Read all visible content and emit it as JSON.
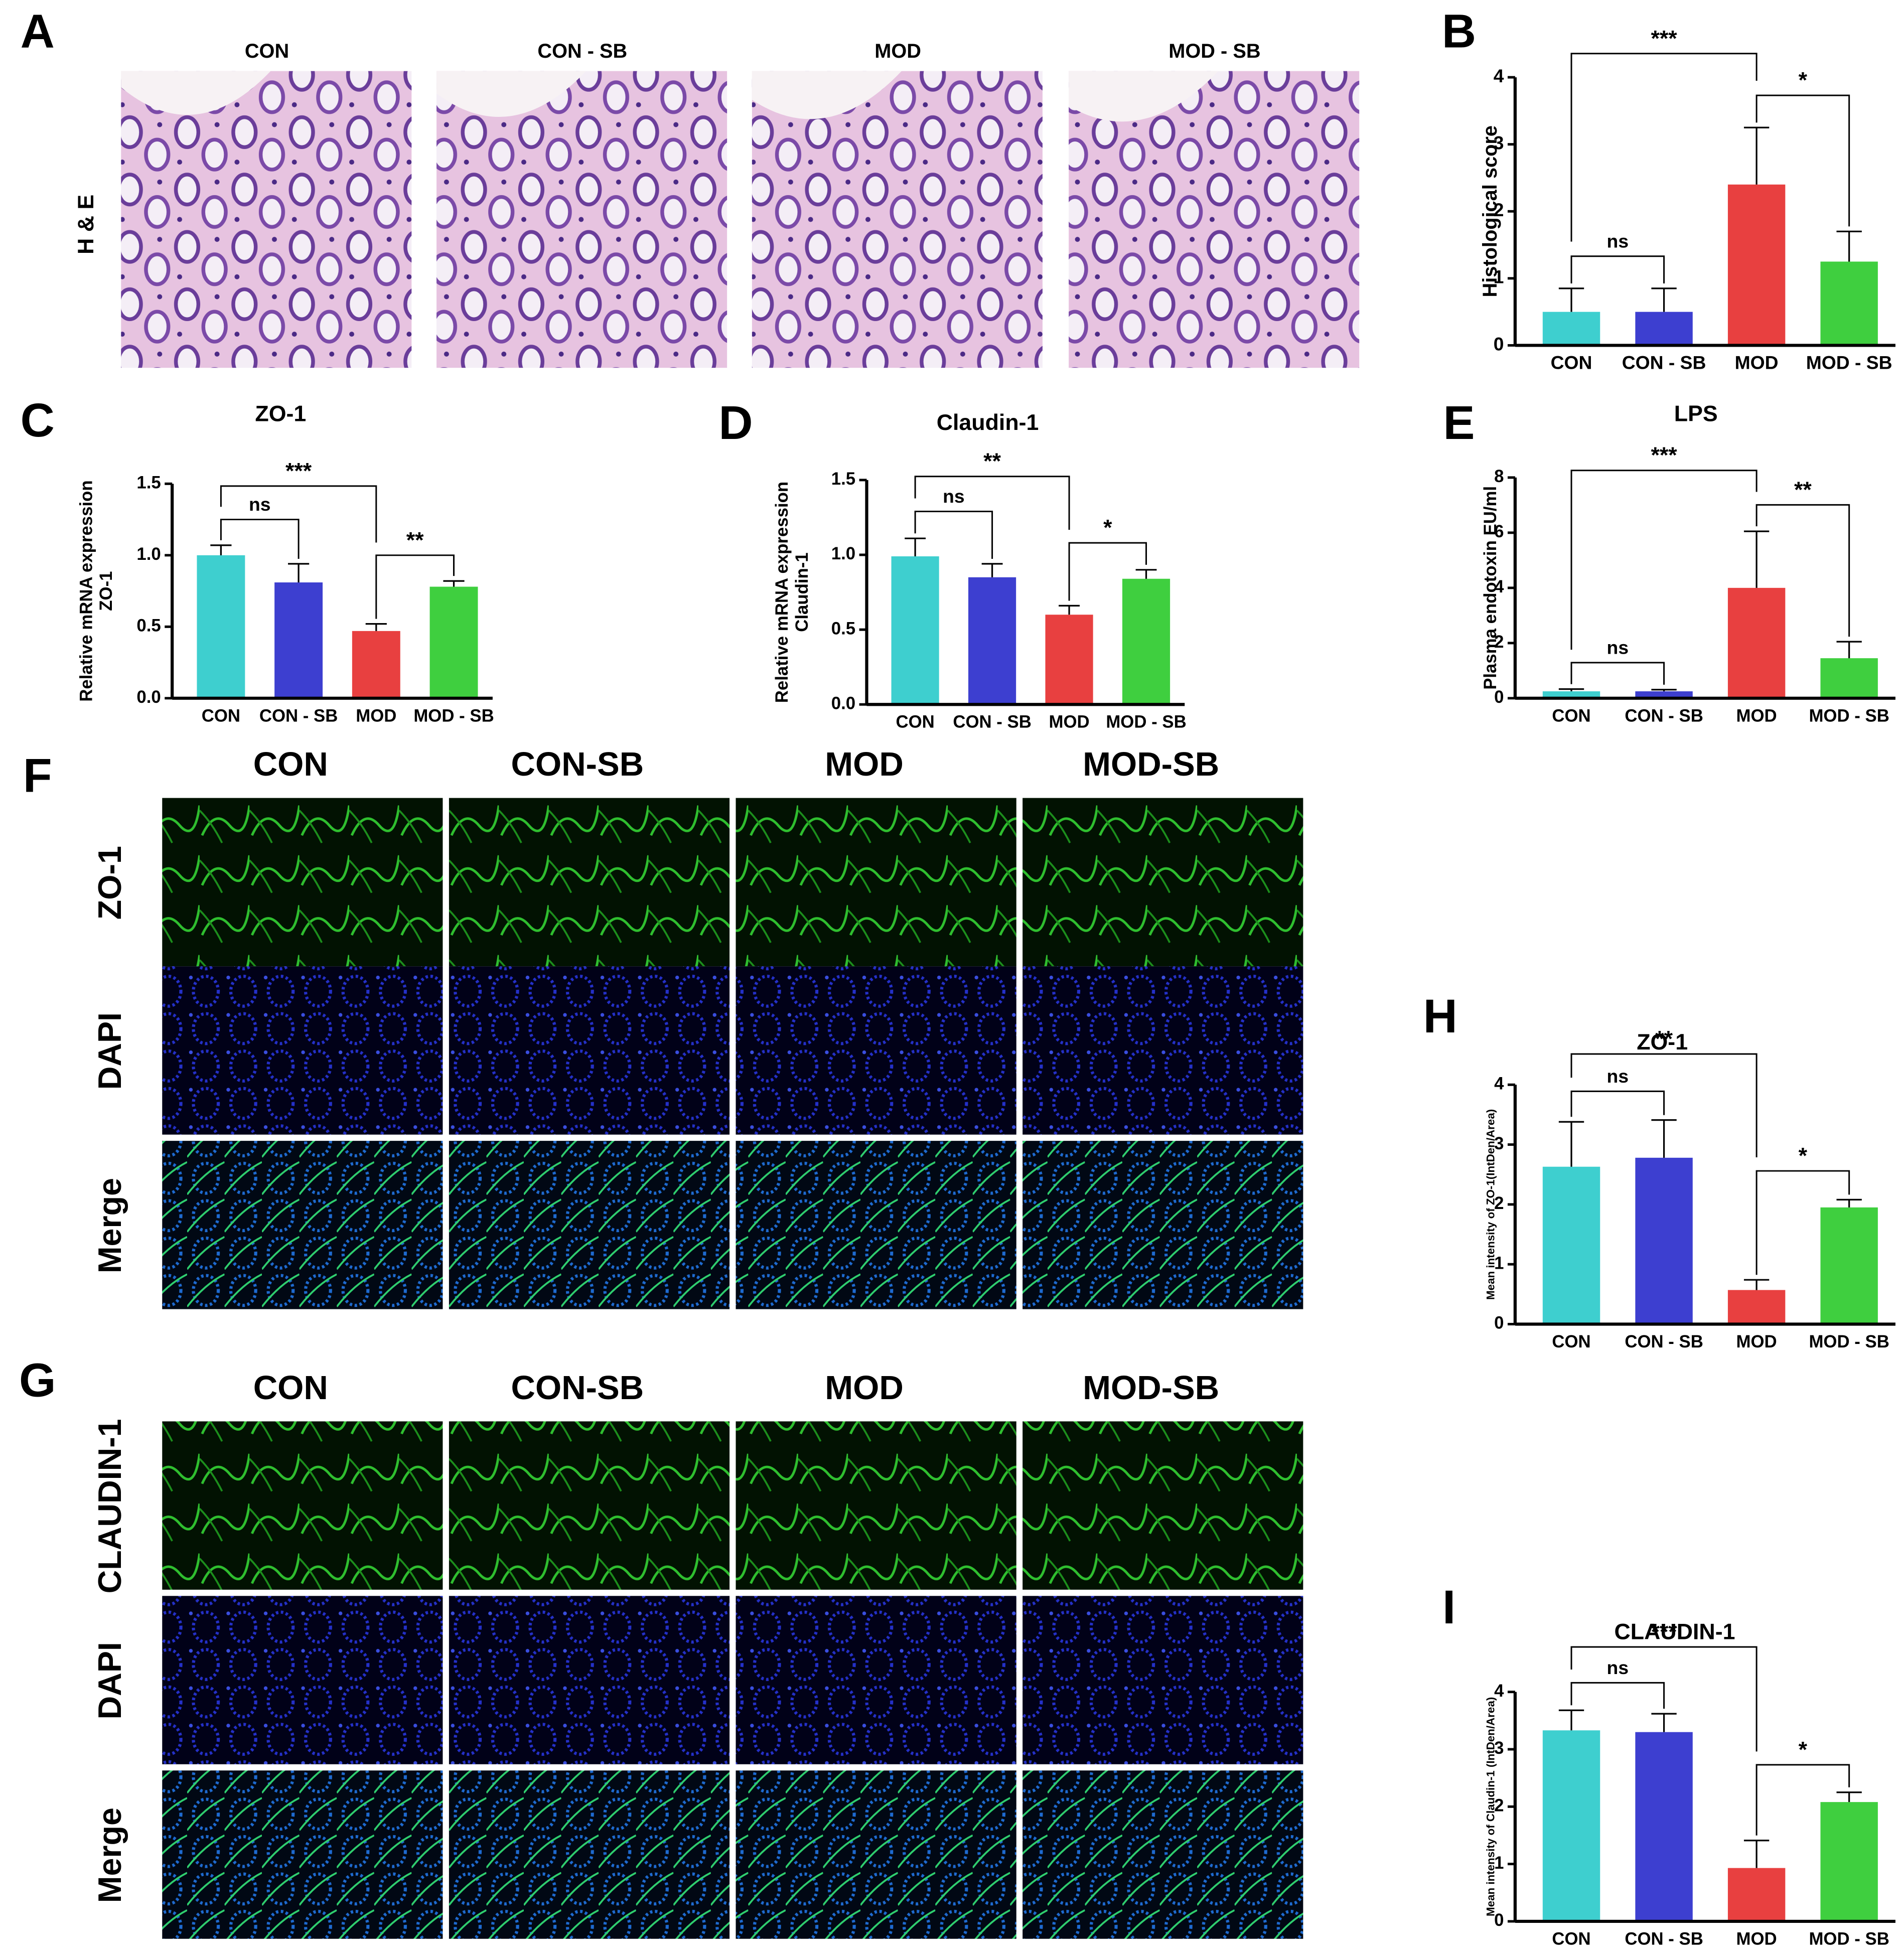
{
  "panel_labels": [
    "A",
    "B",
    "C",
    "D",
    "E",
    "F",
    "G",
    "H",
    "I"
  ],
  "he_panel": {
    "row_label": "H & E",
    "columns": [
      "CON",
      "CON - SB",
      "MOD",
      "MOD - SB"
    ]
  },
  "if_panels": [
    {
      "columns": [
        "CON",
        "CON-SB",
        "MOD",
        "MOD-SB"
      ],
      "rows": [
        "ZO-1",
        "DAPI",
        "Merge"
      ]
    },
    {
      "columns": [
        "CON",
        "CON-SB",
        "MOD",
        "MOD-SB"
      ],
      "rows": [
        "CLAUDIN-1",
        "DAPI",
        "Merge"
      ]
    }
  ],
  "chart_data": [
    {
      "type": "bar",
      "ylabel": [
        "Histological score"
      ],
      "categories": [
        "CON",
        "CON - SB",
        "MOD",
        "MOD - SB"
      ],
      "colors": [
        "#3ecfcf",
        "#3d3fd0",
        "#e84040",
        "#3fcf3f"
      ],
      "values": [
        0.5,
        0.5,
        2.4,
        1.25
      ],
      "errors": [
        0.35,
        0.35,
        0.85,
        0.45
      ],
      "ylim": [
        0,
        4
      ],
      "yticks": [
        0,
        1,
        2,
        3,
        4
      ],
      "annotations": [
        {
          "pair": [
            "CON",
            "CON - SB"
          ],
          "label": "ns"
        },
        {
          "pair": [
            "MOD",
            "MOD - SB"
          ],
          "label": "*"
        },
        {
          "pair": [
            "CON",
            "MOD"
          ],
          "label": "***"
        }
      ]
    },
    {
      "type": "bar",
      "title": "ZO-1",
      "ylabel": [
        "Relative mRNA expression",
        "ZO-1"
      ],
      "categories": [
        "CON",
        "CON - SB",
        "MOD",
        "MOD - SB"
      ],
      "colors": [
        "#3ecfcf",
        "#3d3fd0",
        "#e84040",
        "#3fcf3f"
      ],
      "values": [
        1.0,
        0.81,
        0.47,
        0.78
      ],
      "errors": [
        0.07,
        0.13,
        0.05,
        0.04
      ],
      "ylim": [
        0,
        1.5
      ],
      "yticks": [
        {
          "value": 0,
          "label": "0.0"
        },
        0.5,
        {
          "value": 1,
          "label": "1.0"
        },
        1.5
      ],
      "annotations": [
        {
          "pair": [
            "CON",
            "CON - SB"
          ],
          "label": "ns"
        },
        {
          "pair": [
            "MOD",
            "MOD - SB"
          ],
          "label": "**"
        },
        {
          "pair": [
            "CON",
            "MOD"
          ],
          "label": "***"
        }
      ]
    },
    {
      "type": "bar",
      "title": "Claudin-1",
      "ylabel": [
        "Relative mRNA expression",
        "Claudin-1"
      ],
      "categories": [
        "CON",
        "CON - SB",
        "MOD",
        "MOD - SB"
      ],
      "colors": [
        "#3ecfcf",
        "#3d3fd0",
        "#e84040",
        "#3fcf3f"
      ],
      "values": [
        0.99,
        0.85,
        0.6,
        0.84
      ],
      "errors": [
        0.12,
        0.09,
        0.06,
        0.06
      ],
      "ylim": [
        0,
        1.5
      ],
      "yticks": [
        {
          "value": 0,
          "label": "0.0"
        },
        0.5,
        {
          "value": 1,
          "label": "1.0"
        },
        1.5
      ],
      "annotations": [
        {
          "pair": [
            "CON",
            "CON - SB"
          ],
          "label": "ns"
        },
        {
          "pair": [
            "MOD",
            "MOD - SB"
          ],
          "label": "*"
        },
        {
          "pair": [
            "CON",
            "MOD"
          ],
          "label": "**"
        }
      ]
    },
    {
      "type": "bar",
      "title": "LPS",
      "ylabel": [
        "Plasma endotoxin EU/ml"
      ],
      "categories": [
        "CON",
        "CON - SB",
        "MOD",
        "MOD - SB"
      ],
      "colors": [
        "#3ecfcf",
        "#3d3fd0",
        "#e84040",
        "#3fcf3f"
      ],
      "values": [
        0.25,
        0.25,
        4.0,
        1.45
      ],
      "errors": [
        0.08,
        0.06,
        2.05,
        0.6
      ],
      "ylim": [
        0,
        8
      ],
      "yticks": [
        0,
        2,
        4,
        6,
        8
      ],
      "annotations": [
        {
          "pair": [
            "CON",
            "CON - SB"
          ],
          "label": "ns"
        },
        {
          "pair": [
            "MOD",
            "MOD - SB"
          ],
          "label": "**"
        },
        {
          "pair": [
            "CON",
            "MOD"
          ],
          "label": "***"
        }
      ]
    },
    {
      "type": "bar",
      "title": "ZO-1",
      "ylabel": [
        "Mean intensity of ZO-1(IntDen/Area)"
      ],
      "categories": [
        "CON",
        "CON - SB",
        "MOD",
        "MOD - SB"
      ],
      "colors": [
        "#3ecfcf",
        "#3d3fd0",
        "#e84040",
        "#3fcf3f"
      ],
      "values": [
        2.63,
        2.78,
        0.57,
        1.95
      ],
      "errors": [
        0.75,
        0.63,
        0.17,
        0.13
      ],
      "ylim": [
        0,
        4
      ],
      "yticks": [
        0,
        1,
        2,
        3,
        4
      ],
      "annotations": [
        {
          "pair": [
            "CON",
            "CON - SB"
          ],
          "label": "ns"
        },
        {
          "pair": [
            "MOD",
            "MOD - SB"
          ],
          "label": "*"
        },
        {
          "pair": [
            "CON",
            "MOD"
          ],
          "label": "**"
        }
      ]
    },
    {
      "type": "bar",
      "title": "CLAUDIN-1",
      "ylabel": [
        "Mean intensity of Claudin-1 (IntDen/Area)"
      ],
      "categories": [
        "CON",
        "CON - SB",
        "MOD",
        "MOD - SB"
      ],
      "colors": [
        "#3ecfcf",
        "#3d3fd0",
        "#e84040",
        "#3fcf3f"
      ],
      "values": [
        3.33,
        3.3,
        0.93,
        2.08
      ],
      "errors": [
        0.35,
        0.32,
        0.48,
        0.17
      ],
      "ylim": [
        0,
        4
      ],
      "yticks": [
        0,
        1,
        2,
        3,
        4
      ],
      "annotations": [
        {
          "pair": [
            "CON",
            "CON - SB"
          ],
          "label": "ns"
        },
        {
          "pair": [
            "MOD",
            "MOD - SB"
          ],
          "label": "*"
        },
        {
          "pair": [
            "CON",
            "MOD"
          ],
          "label": "***"
        }
      ]
    }
  ]
}
